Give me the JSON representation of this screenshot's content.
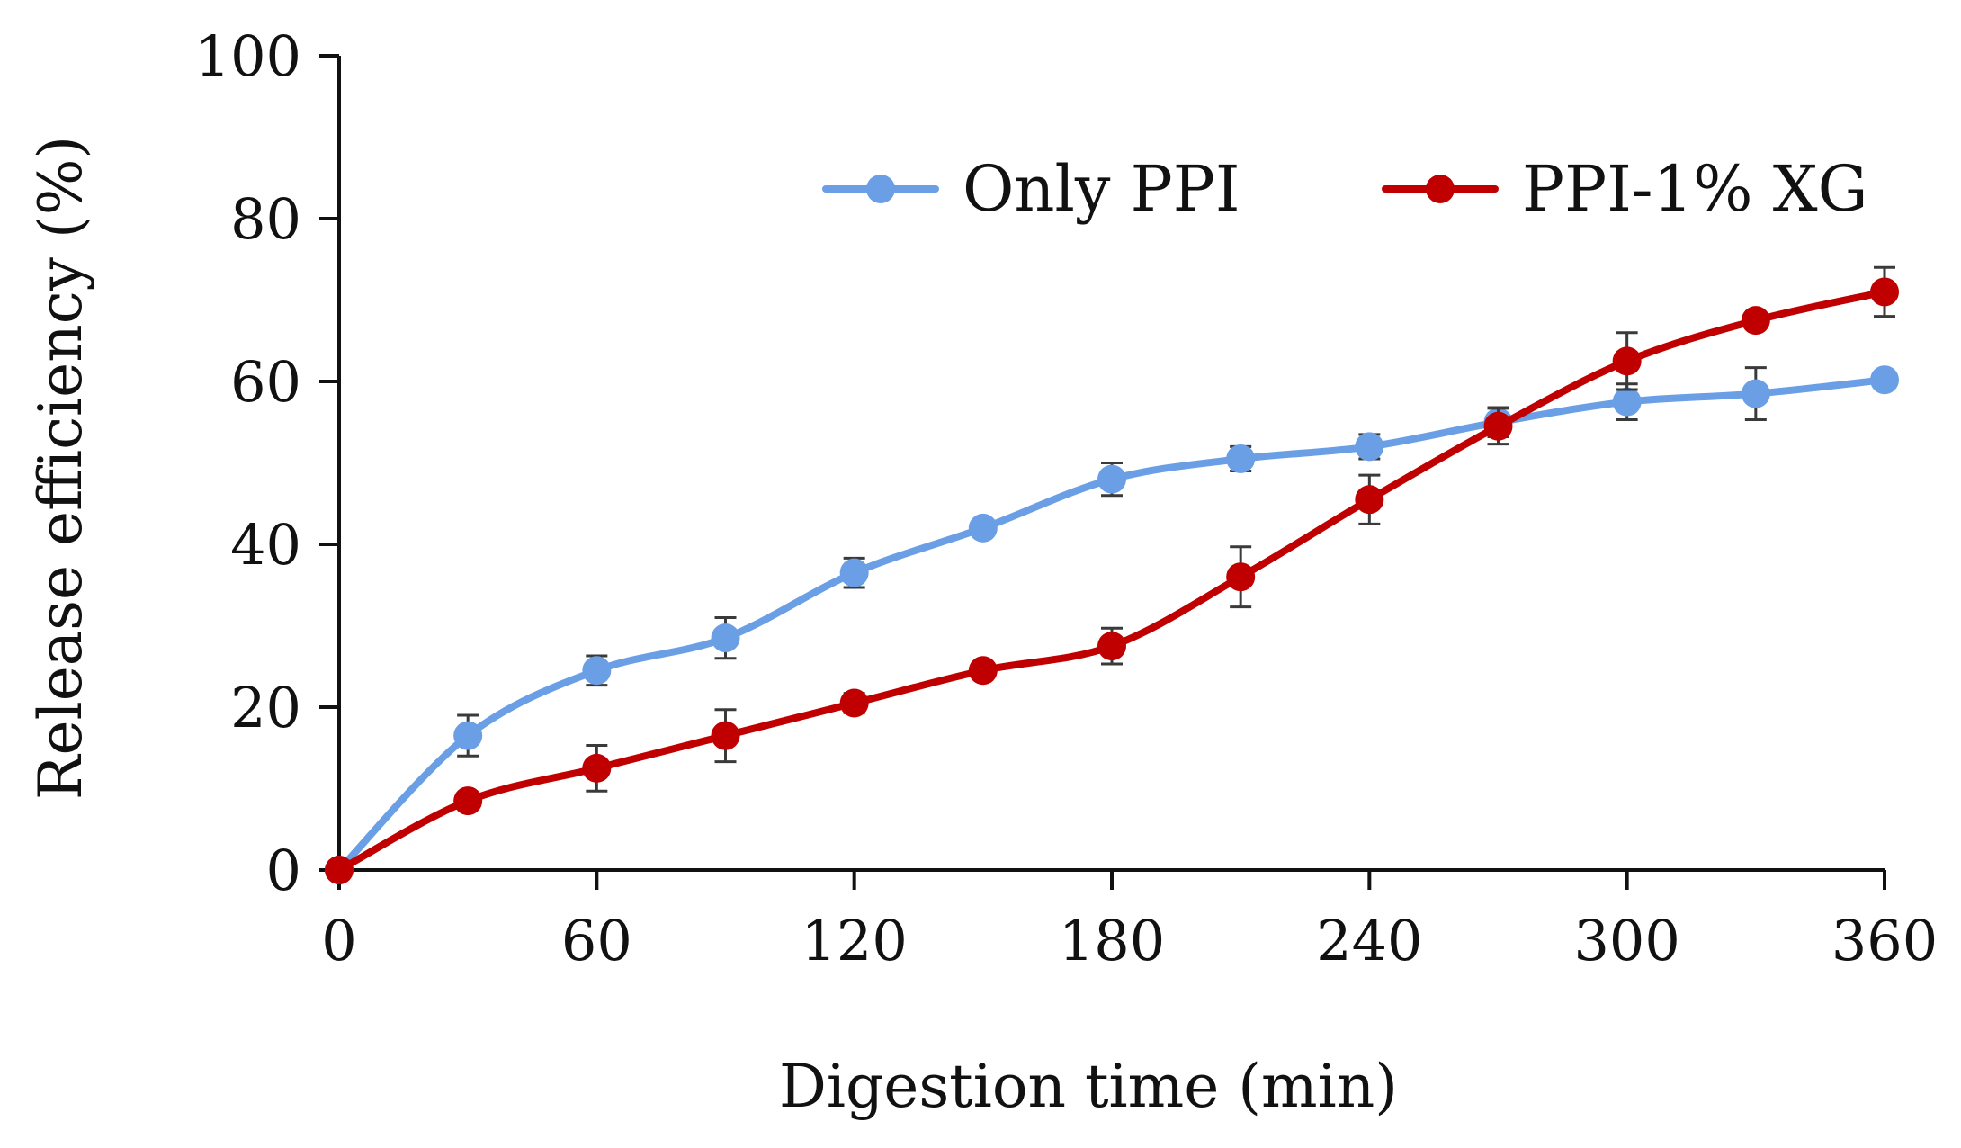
{
  "chart_data": {
    "type": "line",
    "title": "",
    "xlabel": "Digestion time (min)",
    "ylabel": "Release efficiency (%)",
    "xlim": [
      0,
      360
    ],
    "ylim": [
      0,
      100
    ],
    "x_ticks": [
      "0",
      "60",
      "120",
      "180",
      "240",
      "300",
      "360"
    ],
    "y_ticks": [
      "0",
      "20",
      "40",
      "60",
      "80",
      "100"
    ],
    "grid": false,
    "legend_position": "top-right",
    "x": [
      0,
      30,
      60,
      90,
      120,
      150,
      180,
      210,
      240,
      270,
      300,
      330,
      360
    ],
    "series": [
      {
        "name": "Only PPI",
        "color": "#6a9fe6",
        "values": [
          0,
          16.5,
          24.5,
          28.5,
          36.5,
          42,
          48,
          50.5,
          52,
          55,
          57.5,
          58.5,
          60.2
        ],
        "errors": [
          0,
          2.5,
          1.8,
          2.5,
          1.8,
          0.8,
          2.0,
          1.5,
          1.5,
          1.8,
          2.2,
          3.2,
          0.8
        ]
      },
      {
        "name": "PPI-1% XG",
        "color": "#c00000",
        "values": [
          0,
          8.5,
          12.5,
          16.5,
          20.5,
          24.5,
          27.5,
          36,
          45.5,
          54.5,
          62.5,
          67.5,
          71
        ],
        "errors": [
          0,
          0.8,
          2.8,
          3.2,
          1.2,
          0.5,
          2.2,
          3.7,
          3.0,
          2.2,
          3.5,
          0.5,
          3.0
        ]
      }
    ]
  }
}
